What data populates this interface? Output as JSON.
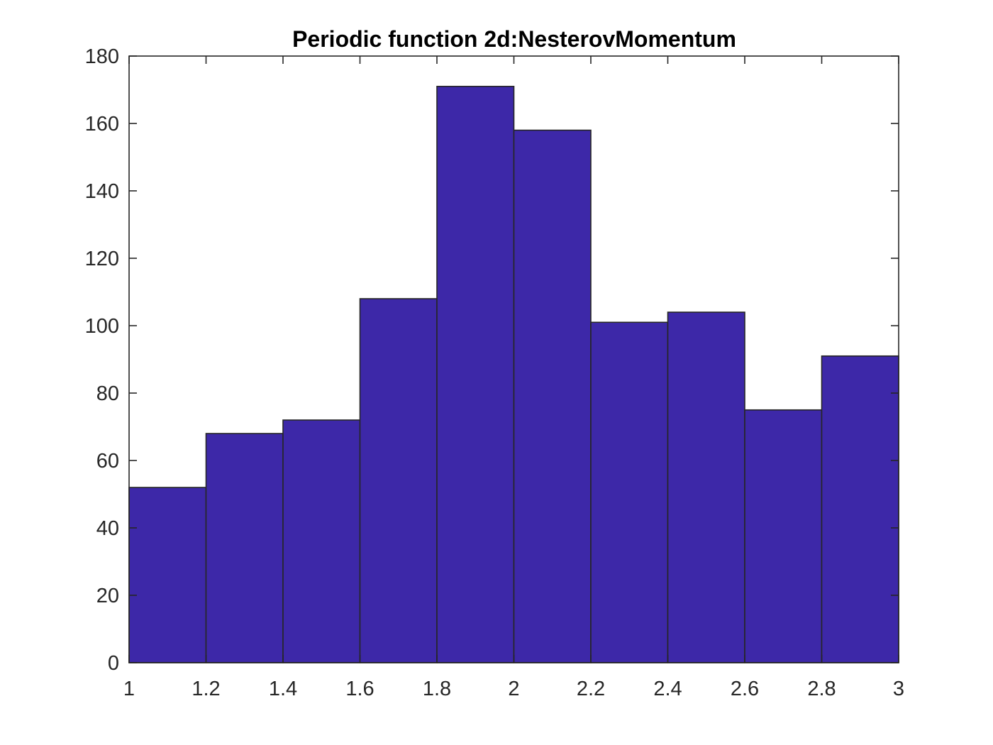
{
  "chart_data": {
    "type": "bar",
    "subtype": "histogram",
    "title": "Periodic function 2d:NesterovMomentum",
    "xlabel": "",
    "ylabel": "",
    "bin_edges": [
      1,
      1.2,
      1.4,
      1.6,
      1.8,
      2,
      2.2,
      2.4,
      2.6,
      2.8,
      3
    ],
    "values": [
      52,
      68,
      72,
      108,
      171,
      158,
      101,
      104,
      75,
      91
    ],
    "xlim": [
      1,
      3
    ],
    "ylim": [
      0,
      180
    ],
    "xticks": [
      1,
      1.2,
      1.4,
      1.6,
      1.8,
      2,
      2.2,
      2.4,
      2.6,
      2.8,
      3
    ],
    "xtick_labels": [
      "1",
      "1.2",
      "1.4",
      "1.6",
      "1.8",
      "2",
      "2.2",
      "2.4",
      "2.6",
      "2.8",
      "3"
    ],
    "yticks": [
      0,
      20,
      40,
      60,
      80,
      100,
      120,
      140,
      160,
      180
    ],
    "ytick_labels": [
      "0",
      "20",
      "40",
      "60",
      "80",
      "100",
      "120",
      "140",
      "160",
      "180"
    ],
    "grid": false,
    "legend": "none",
    "colors": {
      "bar_fill": "#3d28a8",
      "bar_edge": "#262626",
      "axis": "#262626",
      "text": "#262626",
      "title": "#000000",
      "background": "#ffffff"
    }
  }
}
